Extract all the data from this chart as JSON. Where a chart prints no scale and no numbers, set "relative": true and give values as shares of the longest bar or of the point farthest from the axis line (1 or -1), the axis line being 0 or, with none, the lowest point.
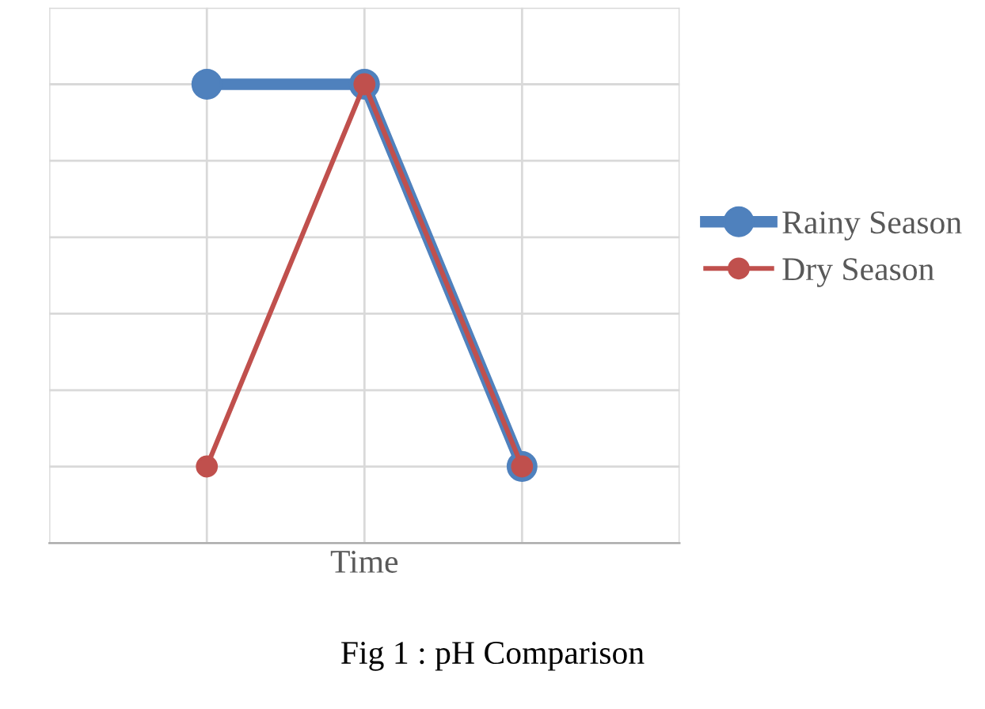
{
  "chart_data": {
    "type": "line",
    "relative": true,
    "xlabel": "Time",
    "categories": [
      null,
      null,
      null
    ],
    "series": [
      {
        "name": "Rainy Season",
        "color": "#4f81bd",
        "values": [
          1,
          1,
          0.167
        ]
      },
      {
        "name": "Dry Season",
        "color": "#c0504d",
        "values": [
          0.167,
          1,
          0.167
        ]
      }
    ],
    "marker": "circle",
    "line_style": "solid",
    "grid": true,
    "legend": "right",
    "tick_labels": false,
    "annotations": [
      "Fig 1 : pH Comparison"
    ]
  }
}
